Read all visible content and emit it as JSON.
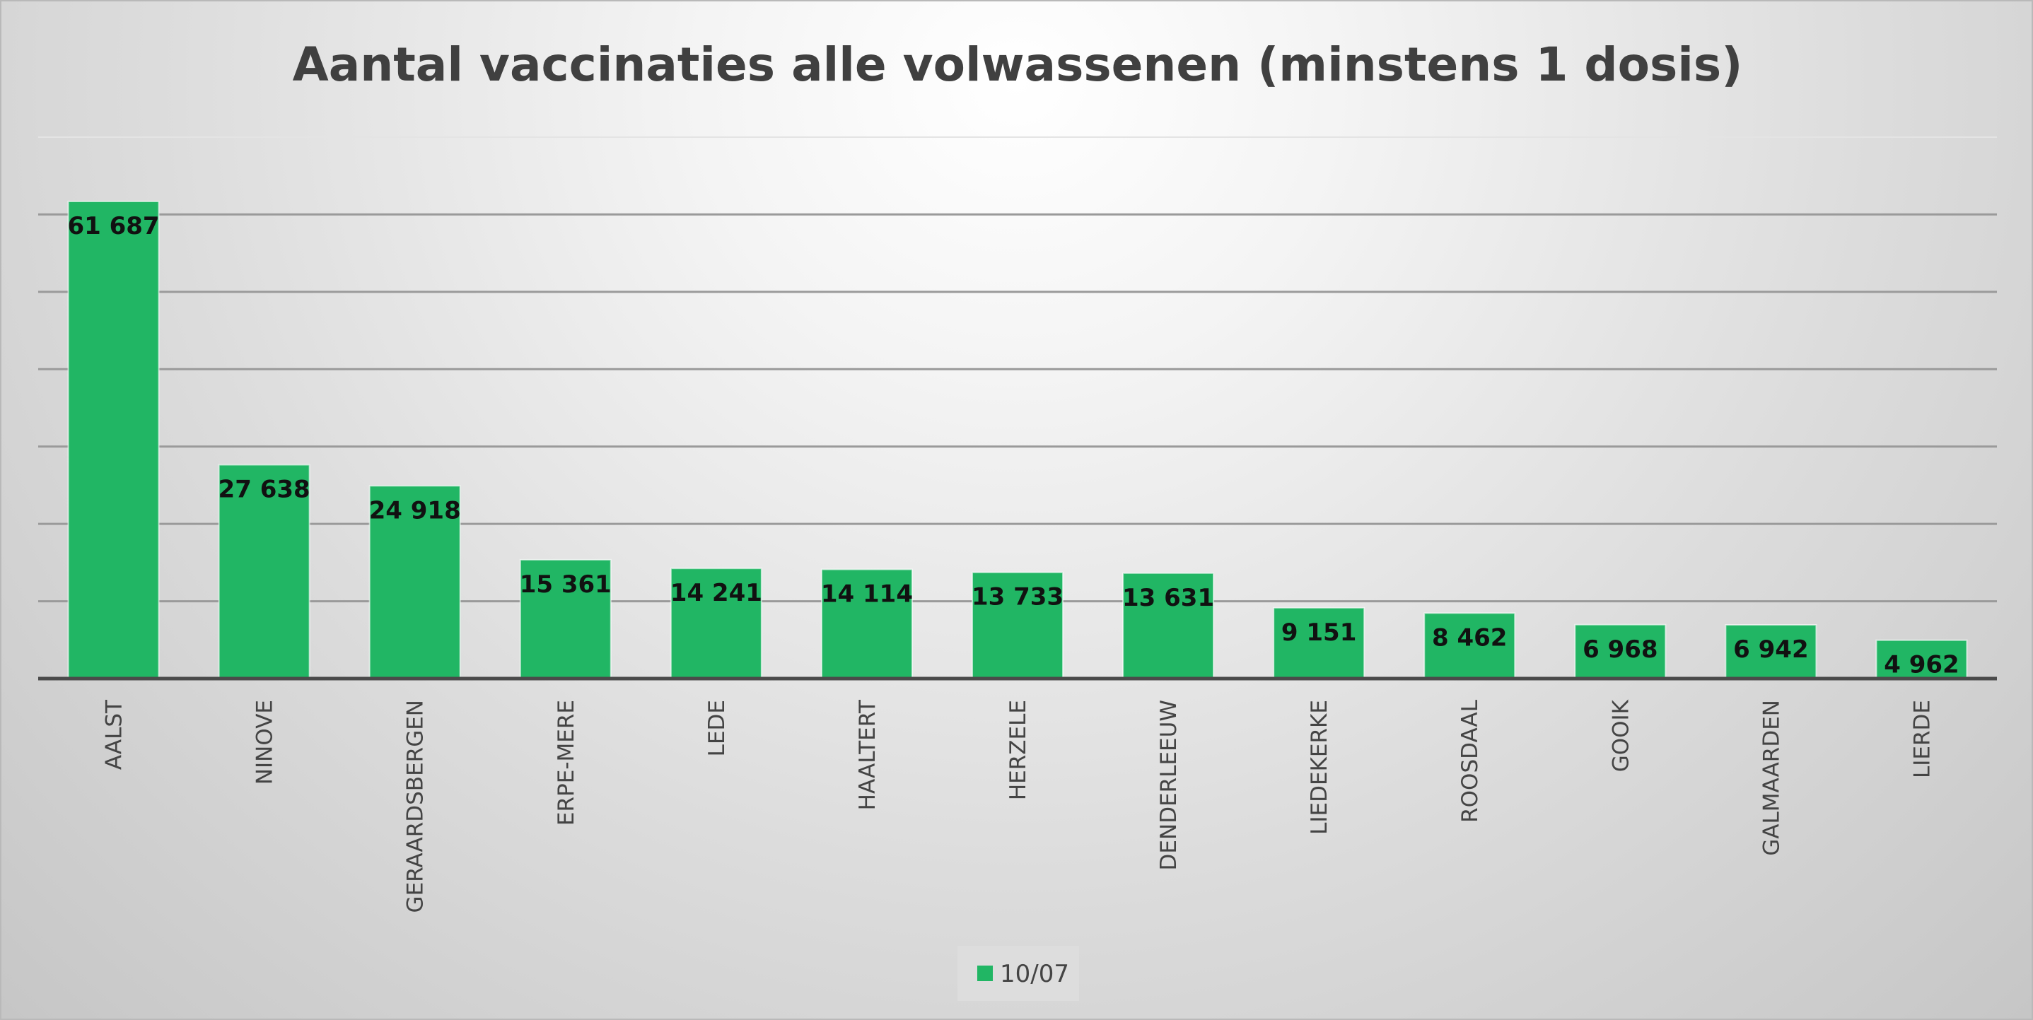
{
  "chart_data": {
    "type": "bar",
    "title": "Aantal vaccinaties alle volwassenen (minstens 1 dosis)",
    "xlabel": "",
    "ylabel": "",
    "ylim": [
      0,
      70000
    ],
    "grid": true,
    "legend_position": "bottom",
    "categories": [
      "AALST",
      "NINOVE",
      "GERAARDSBERGEN",
      "ERPE-MERE",
      "LEDE",
      "HAALTERT",
      "HERZELE",
      "DENDERLEEUW",
      "LIEDEKERKE",
      "ROOSDAAL",
      "GOOIK",
      "GALMAARDEN",
      "LIERDE"
    ],
    "series": [
      {
        "name": "10/07",
        "color": "#21b664",
        "values": [
          61687,
          27638,
          24918,
          15361,
          14241,
          14114,
          13733,
          13631,
          9151,
          8462,
          6968,
          6942,
          4962
        ],
        "labels": [
          "61 687",
          "27 638",
          "24 918",
          "15 361",
          "14 241",
          "14 114",
          "13 733",
          "13 631",
          "9 151",
          "8 462",
          "6 968",
          "6 942",
          "4 962"
        ]
      }
    ]
  }
}
